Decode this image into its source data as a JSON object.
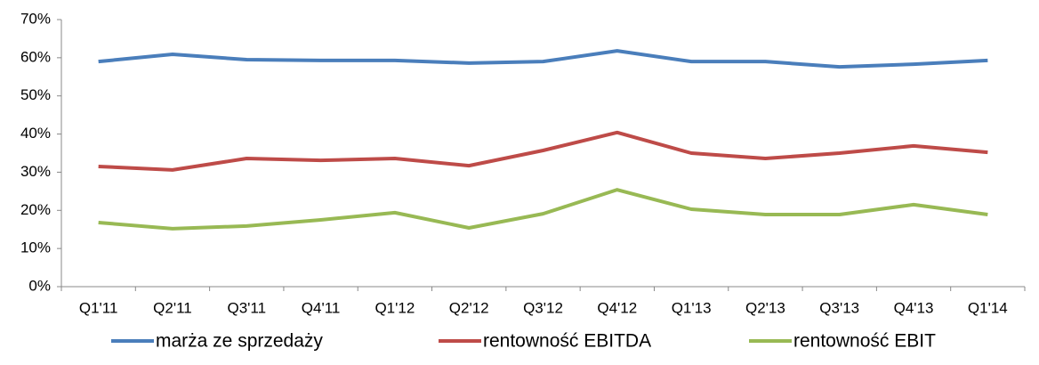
{
  "chart_data": {
    "type": "line",
    "categories": [
      "Q1'11",
      "Q2'11",
      "Q3'11",
      "Q4'11",
      "Q1'12",
      "Q2'12",
      "Q3'12",
      "Q4'12",
      "Q1'13",
      "Q2'13",
      "Q3'13",
      "Q4'13",
      "Q1'14"
    ],
    "series": [
      {
        "name": "marża ze sprzedaży",
        "color": "#4a7ebb",
        "values": [
          59.0,
          60.9,
          59.5,
          59.3,
          59.3,
          58.6,
          59.0,
          61.8,
          59.0,
          59.0,
          57.6,
          58.3,
          59.3
        ]
      },
      {
        "name": "rentowność EBITDA",
        "color": "#be4b48",
        "values": [
          31.5,
          30.6,
          33.6,
          33.1,
          33.6,
          31.7,
          35.7,
          40.4,
          35.0,
          33.6,
          35.0,
          36.9,
          35.2
        ]
      },
      {
        "name": "rentowność EBIT",
        "color": "#98b954",
        "values": [
          16.8,
          15.2,
          15.9,
          17.5,
          19.4,
          15.4,
          19.1,
          25.4,
          20.3,
          18.9,
          18.9,
          21.5,
          18.9
        ]
      }
    ],
    "ylim": [
      0,
      70
    ],
    "yticks": [
      {
        "value": 0,
        "label": "0%"
      },
      {
        "value": 10,
        "label": "10%"
      },
      {
        "value": 20,
        "label": "20%"
      },
      {
        "value": 30,
        "label": "30%"
      },
      {
        "value": 40,
        "label": "40%"
      },
      {
        "value": 50,
        "label": "50%"
      },
      {
        "value": 60,
        "label": "60%"
      },
      {
        "value": 70,
        "label": "70%"
      }
    ],
    "grid": false,
    "legend": "bottom"
  }
}
